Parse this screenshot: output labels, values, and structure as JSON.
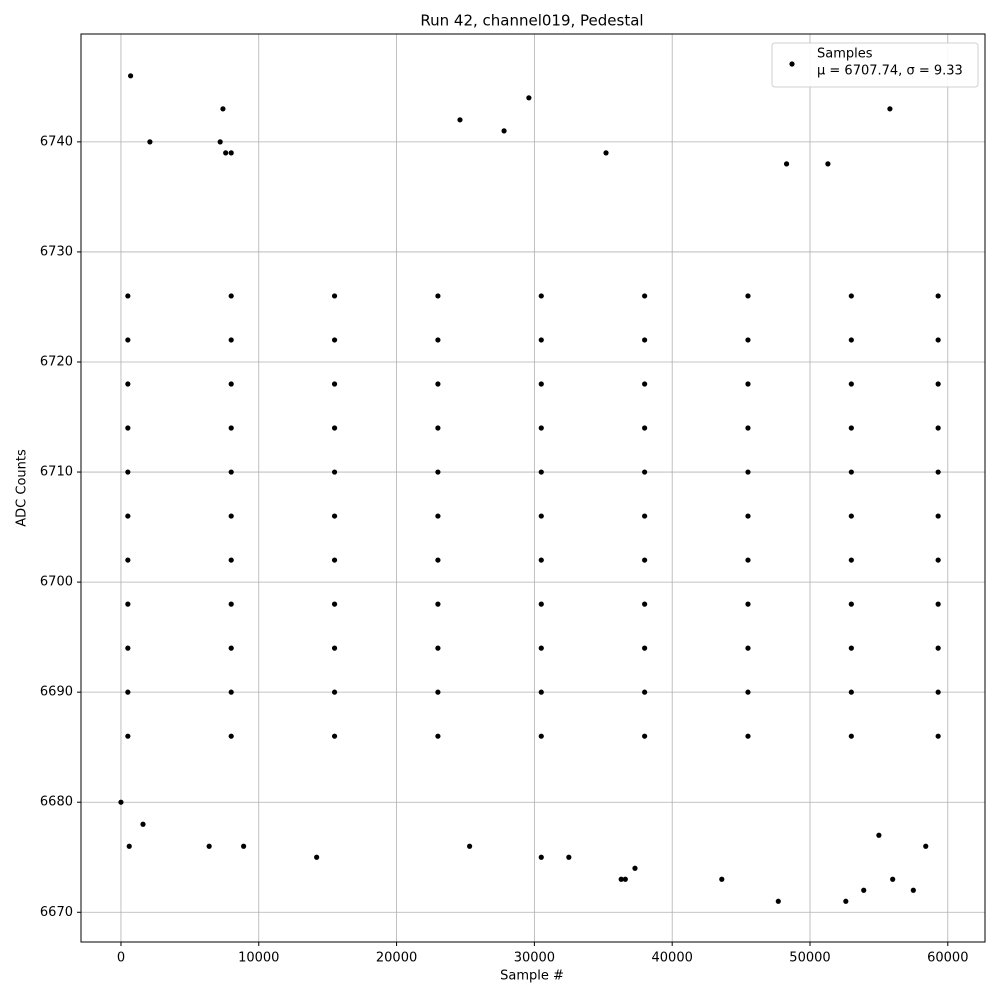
{
  "chart_data": {
    "type": "scatter",
    "title": "Run 42, channel019, Pedestal",
    "x_label": "Sample #",
    "y_label": "ADC Counts",
    "xlim": [
      -2900,
      62700
    ],
    "ylim": [
      6667.3,
      6749.8
    ],
    "xticks": [
      0,
      10000,
      20000,
      30000,
      40000,
      50000,
      60000
    ],
    "yticks": [
      6670,
      6680,
      6690,
      6700,
      6710,
      6720,
      6730,
      6740
    ],
    "grid": true,
    "legend": "upper right",
    "legend_note": "μ = 6707.74, σ = 9.33",
    "x": [
      500,
      8000,
      15500,
      23000,
      30500,
      38000,
      45500,
      53000,
      59300,
      500,
      8000,
      15500,
      23000,
      30500,
      38000,
      45500,
      53000,
      59300,
      500,
      8000,
      15500,
      23000,
      30500,
      38000,
      45500,
      53000,
      59300,
      500,
      8000,
      15500,
      23000,
      30500,
      38000,
      45500,
      53000,
      59300,
      500,
      8000,
      15500,
      23000,
      30500,
      38000,
      45500,
      53000,
      59300,
      500,
      8000,
      15500,
      23000,
      30500,
      38000,
      45500,
      53000,
      59300,
      500,
      8000,
      15500,
      23000,
      30500,
      38000,
      45500,
      53000,
      59300,
      500,
      8000,
      15500,
      23000,
      30500,
      38000,
      45500,
      53000,
      59300,
      500,
      8000,
      15500,
      23000,
      30500,
      38000,
      45500,
      53000,
      59300,
      500,
      8000,
      15500,
      23000,
      30500,
      38000,
      45500,
      53000,
      59300,
      500,
      8000,
      15500,
      23000,
      30500,
      38000,
      45500,
      53000,
      59300,
      700,
      2100,
      7400,
      7200,
      7600,
      8000,
      24600,
      27800,
      29600,
      35200,
      55800,
      48300,
      51300,
      0,
      600,
      1600,
      6400,
      8900,
      14200,
      25300,
      30500,
      32500,
      36300,
      36600,
      37300,
      43600,
      47700,
      52600,
      53900,
      56000,
      57500,
      55000,
      58400
    ],
    "series": [
      {
        "name": "Samples",
        "color": "#000000",
        "values": [
          6686,
          6686,
          6686,
          6686,
          6686,
          6686,
          6686,
          6686,
          6686,
          6690,
          6690,
          6690,
          6690,
          6690,
          6690,
          6690,
          6690,
          6690,
          6694,
          6694,
          6694,
          6694,
          6694,
          6694,
          6694,
          6694,
          6694,
          6698,
          6698,
          6698,
          6698,
          6698,
          6698,
          6698,
          6698,
          6698,
          6702,
          6702,
          6702,
          6702,
          6702,
          6702,
          6702,
          6702,
          6702,
          6706,
          6706,
          6706,
          6706,
          6706,
          6706,
          6706,
          6706,
          6706,
          6710,
          6710,
          6710,
          6710,
          6710,
          6710,
          6710,
          6710,
          6710,
          6714,
          6714,
          6714,
          6714,
          6714,
          6714,
          6714,
          6714,
          6714,
          6718,
          6718,
          6718,
          6718,
          6718,
          6718,
          6718,
          6718,
          6718,
          6722,
          6722,
          6722,
          6722,
          6722,
          6722,
          6722,
          6722,
          6722,
          6726,
          6726,
          6726,
          6726,
          6726,
          6726,
          6726,
          6726,
          6726,
          6746,
          6740,
          6743,
          6740,
          6739,
          6739,
          6742,
          6741,
          6744,
          6739,
          6743,
          6738,
          6738,
          6680,
          6676,
          6678,
          6676,
          6676,
          6675,
          6676,
          6675,
          6675,
          6673,
          6673,
          6674,
          6673,
          6671,
          6671,
          6672,
          6673,
          6672,
          6677,
          6676
        ]
      }
    ]
  }
}
